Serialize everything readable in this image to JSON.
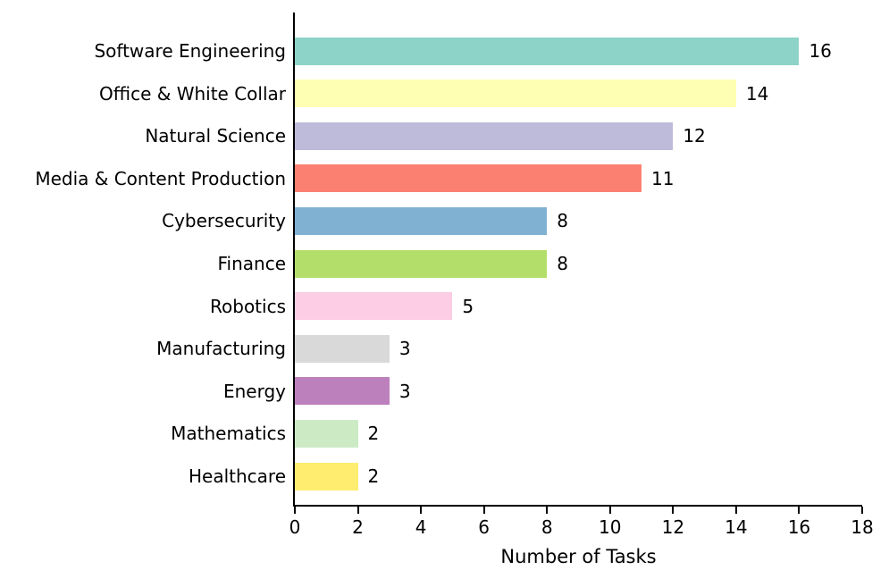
{
  "chart_data": {
    "type": "bar",
    "orientation": "horizontal",
    "title": "",
    "xlabel": "Number of Tasks",
    "ylabel": "",
    "categories": [
      "Software Engineering",
      "Office & White Collar",
      "Natural Science",
      "Media & Content Production",
      "Cybersecurity",
      "Finance",
      "Robotics",
      "Manufacturing",
      "Energy",
      "Mathematics",
      "Healthcare"
    ],
    "values": [
      16,
      14,
      12,
      11,
      8,
      8,
      5,
      3,
      3,
      2,
      2
    ],
    "bar_colors": [
      "#8dd3c7",
      "#ffffb3",
      "#bebada",
      "#fb8072",
      "#80b1d3",
      "#b3de69",
      "#fccde5",
      "#d9d9d9",
      "#bc80bd",
      "#ccebc5",
      "#ffed6f"
    ],
    "value_labels": [
      "16",
      "14",
      "12",
      "11",
      "8",
      "8",
      "5",
      "3",
      "3",
      "2",
      "2"
    ],
    "xlim": [
      0,
      18
    ],
    "xticks": [
      0,
      2,
      4,
      6,
      8,
      10,
      12,
      14,
      16,
      18
    ],
    "xtick_labels": [
      "0",
      "2",
      "4",
      "6",
      "8",
      "10",
      "12",
      "14",
      "16",
      "18"
    ],
    "grid": false,
    "legend": "none",
    "axis_color": "#000000",
    "background_color": "#ffffff"
  }
}
